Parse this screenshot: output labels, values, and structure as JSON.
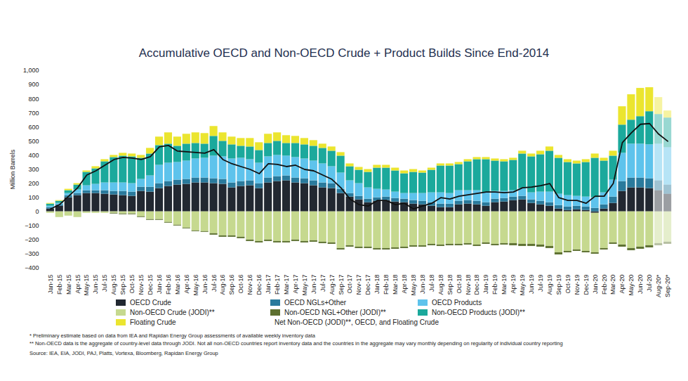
{
  "chart_data": {
    "type": "bar",
    "title": "Accumulative OECD and Non-OECD Crude + Product Builds Since End-2014",
    "y_label": "Million Barrels",
    "stacked": true,
    "grid": false,
    "categories": [
      "Jan-15",
      "Feb-15",
      "Mar-15",
      "Apr-15",
      "May-15",
      "Jun-15",
      "Jul-15",
      "Aug-15",
      "Sep-15",
      "Oct-15",
      "Nov-15",
      "Dec-15",
      "Jan-16",
      "Feb-16",
      "Mar-16",
      "Apr-16",
      "May-16",
      "Jun-16",
      "Jul-16",
      "Aug-16",
      "Sep-16",
      "Oct-16",
      "Nov-16",
      "Dec-16",
      "Jan-17",
      "Feb-17",
      "Mar-17",
      "Apr-17",
      "May-17",
      "Jun-17",
      "Jul-17",
      "Aug-17",
      "Sep-17",
      "Oct-17",
      "Nov-17",
      "Dec-17",
      "Jan-18",
      "Feb-18",
      "Mar-18",
      "Apr-18",
      "May-18",
      "Jun-18",
      "Jul-18",
      "Aug-18",
      "Sep-18",
      "Oct-18",
      "Nov-18",
      "Dec-18",
      "Jan-19",
      "Feb-19",
      "Mar-19",
      "Apr-19",
      "May-19",
      "Jun-19",
      "Jul-19",
      "Aug-19",
      "Sep-19",
      "Oct-19",
      "Nov-19",
      "Dec-19",
      "Jan-20",
      "Feb-20",
      "Mar-20",
      "Apr-20",
      "May-20",
      "Jun-20",
      "Jul-20",
      "Aug-20*",
      "Sep-20*"
    ],
    "series": [
      {
        "name": "OECD Crude",
        "color": "#222831",
        "values": [
          20,
          40,
          100,
          115,
          130,
          130,
          125,
          120,
          115,
          110,
          145,
          140,
          165,
          180,
          190,
          195,
          205,
          205,
          200,
          195,
          170,
          180,
          185,
          165,
          205,
          215,
          220,
          205,
          200,
          185,
          170,
          165,
          130,
          105,
          85,
          65,
          75,
          80,
          70,
          65,
          55,
          50,
          40,
          30,
          30,
          50,
          55,
          50,
          40,
          65,
          70,
          80,
          85,
          60,
          50,
          40,
          20,
          10,
          15,
          10,
          -10,
          20,
          60,
          145,
          170,
          170,
          165,
          150,
          125
        ]
      },
      {
        "name": "OECD NGLs+Other",
        "color": "#2a7a9c",
        "values": [
          10,
          10,
          15,
          15,
          20,
          20,
          25,
          25,
          30,
          30,
          30,
          35,
          35,
          35,
          35,
          35,
          35,
          35,
          35,
          35,
          35,
          35,
          35,
          35,
          35,
          35,
          35,
          35,
          35,
          35,
          35,
          35,
          30,
          25,
          25,
          25,
          25,
          25,
          25,
          25,
          25,
          25,
          25,
          25,
          25,
          25,
          25,
          25,
          25,
          25,
          25,
          25,
          25,
          25,
          25,
          25,
          25,
          25,
          25,
          25,
          25,
          30,
          45,
          70,
          70,
          70,
          70,
          70,
          65
        ]
      },
      {
        "name": "OECD Products",
        "color": "#5ec3ec",
        "values": [
          10,
          10,
          15,
          25,
          35,
          45,
          55,
          60,
          60,
          60,
          55,
          80,
          130,
          130,
          125,
          130,
          135,
          140,
          160,
          160,
          170,
          165,
          150,
          145,
          150,
          150,
          140,
          145,
          140,
          140,
          135,
          120,
          115,
          90,
          90,
          80,
          60,
          50,
          45,
          40,
          50,
          55,
          70,
          80,
          75,
          75,
          70,
          75,
          70,
          55,
          50,
          45,
          55,
          50,
          65,
          75,
          80,
          80,
          70,
          70,
          75,
          85,
          120,
          200,
          240,
          240,
          240,
          260,
          265
        ]
      },
      {
        "name": "Non-OECD Crude (JODI)**",
        "color": "#c6d98f",
        "values": [
          -10,
          -40,
          -30,
          -40,
          -10,
          -10,
          -10,
          -10,
          -15,
          -15,
          -35,
          -55,
          -55,
          -75,
          -95,
          -115,
          -135,
          -140,
          -155,
          -170,
          -170,
          -180,
          -200,
          -210,
          -200,
          -210,
          -210,
          -200,
          -210,
          -205,
          -215,
          -220,
          -260,
          -240,
          -250,
          -250,
          -260,
          -260,
          -255,
          -250,
          -240,
          -240,
          -230,
          -235,
          -230,
          -230,
          -225,
          -235,
          -220,
          -230,
          -225,
          -225,
          -230,
          -230,
          -235,
          -245,
          -290,
          -280,
          -270,
          -280,
          -280,
          -260,
          -220,
          -235,
          -260,
          -250,
          -240,
          -225,
          -215
        ]
      },
      {
        "name": "Non-OECD NGL+Other (JODI)**",
        "color": "#5d7030",
        "values": [
          0,
          0,
          0,
          0,
          0,
          0,
          0,
          -5,
          -5,
          -5,
          -5,
          -5,
          -5,
          -5,
          -5,
          -5,
          -5,
          -5,
          -10,
          -10,
          -10,
          -10,
          -10,
          -10,
          -10,
          -10,
          -10,
          -10,
          -10,
          -10,
          -10,
          -10,
          -10,
          -10,
          -10,
          -10,
          -10,
          -10,
          -10,
          -10,
          -10,
          -10,
          -10,
          -10,
          -10,
          -10,
          -10,
          -10,
          -10,
          -10,
          -10,
          -15,
          -15,
          -15,
          -15,
          -15,
          -15,
          -10,
          -10,
          -10,
          -10,
          -10,
          -10,
          -15,
          -15,
          -15,
          -15,
          -15,
          -15
        ]
      },
      {
        "name": "Non-OECD Products (JODI)**",
        "color": "#1ba99c",
        "values": [
          15,
          15,
          20,
          35,
          95,
          110,
          150,
          180,
          190,
          190,
          150,
          155,
          140,
          135,
          115,
          120,
          110,
          100,
          140,
          110,
          100,
          85,
          90,
          90,
          95,
          100,
          90,
          100,
          100,
          105,
          110,
          110,
          120,
          100,
          95,
          110,
          150,
          155,
          150,
          140,
          150,
          145,
          160,
          190,
          195,
          185,
          205,
          220,
          235,
          215,
          210,
          215,
          245,
          255,
          265,
          290,
          255,
          235,
          230,
          245,
          280,
          225,
          170,
          200,
          170,
          195,
          235,
          210,
          210
        ]
      },
      {
        "name": "Floating Crude",
        "color": "#ebe52f",
        "values": [
          5,
          5,
          10,
          10,
          10,
          15,
          15,
          15,
          20,
          20,
          20,
          40,
          60,
          80,
          65,
          70,
          75,
          75,
          70,
          60,
          55,
          55,
          60,
          55,
          65,
          60,
          55,
          50,
          45,
          40,
          30,
          30,
          25,
          20,
          20,
          20,
          20,
          20,
          20,
          20,
          20,
          15,
          15,
          15,
          15,
          15,
          15,
          15,
          15,
          15,
          15,
          15,
          20,
          20,
          25,
          30,
          20,
          20,
          20,
          20,
          30,
          20,
          35,
          130,
          180,
          200,
          170,
          120,
          50
        ]
      },
      {
        "name": "Net Non-OECD (JODI)**, OECD, and Floating Crude",
        "color": "#111111",
        "type": "line",
        "values": [
          20,
          50,
          110,
          170,
          260,
          290,
          330,
          370,
          385,
          380,
          370,
          390,
          460,
          470,
          430,
          425,
          420,
          415,
          440,
          370,
          340,
          320,
          300,
          270,
          340,
          335,
          320,
          330,
          300,
          290,
          260,
          230,
          170,
          90,
          50,
          40,
          80,
          80,
          50,
          60,
          20,
          40,
          60,
          100,
          90,
          110,
          120,
          130,
          140,
          140,
          135,
          140,
          170,
          175,
          185,
          200,
          100,
          80,
          80,
          60,
          110,
          110,
          200,
          490,
          560,
          620,
          625,
          550,
          500
        ]
      }
    ],
    "ylim": [
      -400,
      1000
    ],
    "yticks": [
      -400,
      -300,
      -200,
      -100,
      0,
      100,
      200,
      300,
      400,
      500,
      600,
      700,
      800,
      900,
      1000
    ],
    "notes": [
      "* Preliminary estimate based on data from IEA and Rapidan Energy Group assessments of available weekly inventory data",
      "** Non-OECD data is the aggregate of country-level data through JODI. Not all non-OECD countries report inventory data and the countries in the aggregate may vary monthly depending on regularity of individual country reporting"
    ],
    "source": "Source: IEA, EIA, JODI, PAJ, Platts, Vortexa, Bloomberg, Rapidan Energy Group"
  }
}
